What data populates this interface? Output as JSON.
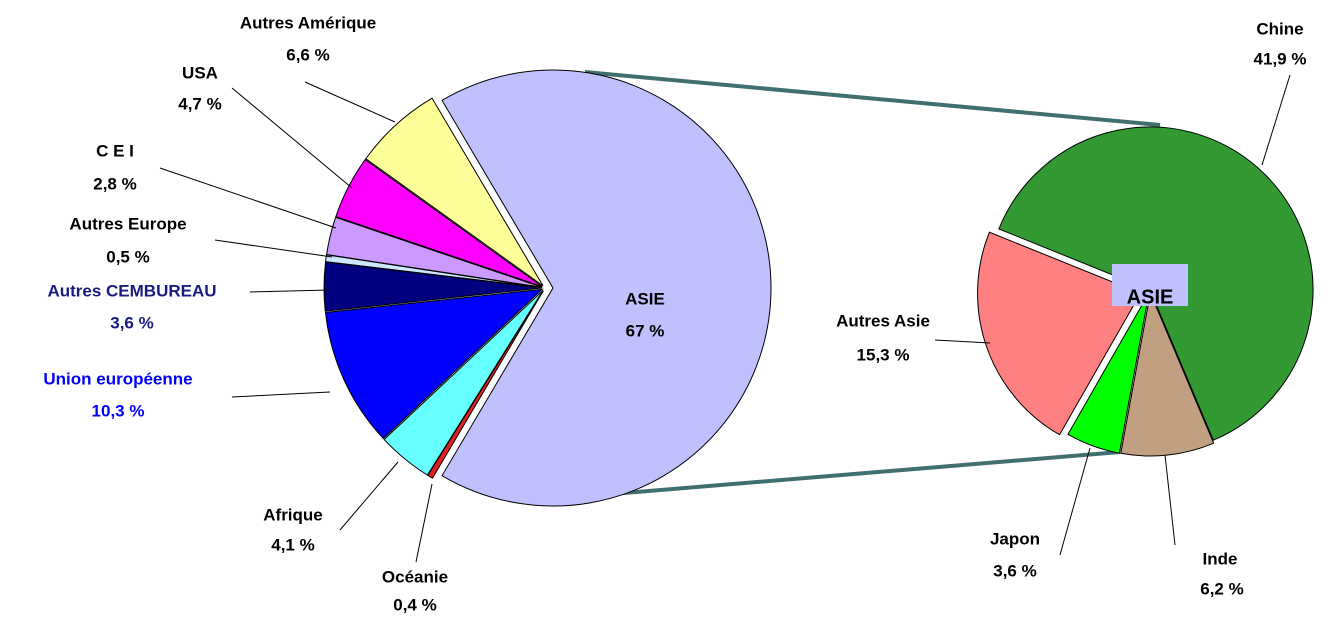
{
  "chart_data": [
    {
      "type": "pie",
      "categories": [
        "ASIE",
        "Océanie",
        "Afrique",
        "Union européenne",
        "Autres CEMBUREAU",
        "Autres Europe",
        "C E I",
        "USA",
        "Autres Amérique"
      ],
      "values": [
        67,
        0.4,
        4.1,
        10.3,
        3.6,
        0.5,
        2.8,
        4.7,
        6.6
      ],
      "value_labels": [
        "67 %",
        "0,4 %",
        "4,1 %",
        "10,3 %",
        "3,6 %",
        "0,5 %",
        "2,8 %",
        "4,7 %",
        "6,6 %"
      ],
      "colors": [
        "#c0c0ff",
        "#e02020",
        "#66ffff",
        "#0000ff",
        "#000080",
        "#cce8ff",
        "#cc99ff",
        "#ff00ff",
        "#ffff99"
      ]
    },
    {
      "type": "pie",
      "label": "ASIE",
      "categories": [
        "Chine",
        "Inde",
        "Japon",
        "Autres Asie"
      ],
      "values": [
        41.9,
        6.2,
        3.6,
        15.3
      ],
      "value_labels": [
        "41,9 %",
        "6,2 %",
        "3,6 %",
        "15,3 %"
      ],
      "colors": [
        "#339933",
        "#c0a080",
        "#00ff00",
        "#ff8080"
      ]
    }
  ]
}
